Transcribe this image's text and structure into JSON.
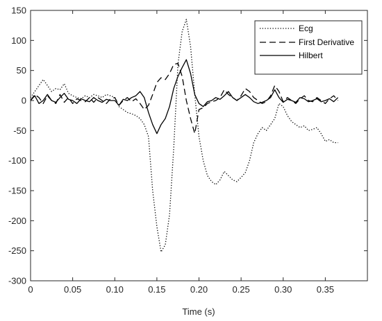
{
  "chart_data": {
    "type": "line",
    "title": "",
    "xlabel": "Time (s)",
    "ylabel": "",
    "xlim": [
      0,
      0.4
    ],
    "ylim": [
      -300,
      150
    ],
    "xticks": [
      0,
      0.05,
      0.1,
      0.15,
      0.2,
      0.25,
      0.3,
      0.35
    ],
    "xtick_labels": [
      "0",
      "0.05",
      "0.10",
      "0.15",
      "0.20",
      "0.25",
      "0.30",
      "0.35"
    ],
    "yticks": [
      150,
      100,
      50,
      0,
      -50,
      -100,
      -150,
      -200,
      -250,
      -300
    ],
    "ytick_labels": [
      "150",
      "100",
      "50",
      "0",
      "-50",
      "-100",
      "-150",
      "-200",
      "-250",
      "-300"
    ],
    "grid": false,
    "legend_position": "top-right",
    "series": [
      {
        "name": "Ecg",
        "style": "dotted",
        "color": "#000000",
        "x": [
          0.0,
          0.005,
          0.01,
          0.015,
          0.02,
          0.025,
          0.03,
          0.035,
          0.04,
          0.045,
          0.05,
          0.055,
          0.06,
          0.065,
          0.07,
          0.075,
          0.08,
          0.085,
          0.09,
          0.095,
          0.1,
          0.105,
          0.11,
          0.115,
          0.12,
          0.125,
          0.13,
          0.135,
          0.14,
          0.145,
          0.15,
          0.155,
          0.16,
          0.165,
          0.17,
          0.175,
          0.18,
          0.185,
          0.19,
          0.195,
          0.2,
          0.205,
          0.21,
          0.215,
          0.22,
          0.225,
          0.23,
          0.235,
          0.24,
          0.245,
          0.25,
          0.255,
          0.26,
          0.265,
          0.27,
          0.275,
          0.28,
          0.285,
          0.29,
          0.295,
          0.3,
          0.305,
          0.31,
          0.315,
          0.32,
          0.325,
          0.33,
          0.335,
          0.34,
          0.345,
          0.35,
          0.355,
          0.36,
          0.365
        ],
        "y": [
          5,
          15,
          25,
          35,
          25,
          15,
          20,
          18,
          28,
          12,
          8,
          5,
          3,
          8,
          5,
          10,
          8,
          5,
          10,
          8,
          5,
          -10,
          -15,
          -20,
          -22,
          -25,
          -30,
          -40,
          -60,
          -150,
          -210,
          -252,
          -240,
          -190,
          -80,
          60,
          115,
          135,
          90,
          10,
          -60,
          -100,
          -125,
          -135,
          -140,
          -132,
          -118,
          -125,
          -132,
          -135,
          -128,
          -120,
          -100,
          -70,
          -55,
          -45,
          -50,
          -40,
          -30,
          -5,
          -10,
          -25,
          -35,
          -40,
          -45,
          -42,
          -50,
          -48,
          -45,
          -55,
          -68,
          -65,
          -70,
          -70
        ]
      },
      {
        "name": "First Derivative",
        "style": "dashed",
        "color": "#000000",
        "x": [
          0.0,
          0.005,
          0.01,
          0.015,
          0.02,
          0.025,
          0.03,
          0.035,
          0.04,
          0.045,
          0.05,
          0.055,
          0.06,
          0.065,
          0.07,
          0.075,
          0.08,
          0.085,
          0.09,
          0.095,
          0.1,
          0.105,
          0.11,
          0.115,
          0.12,
          0.125,
          0.13,
          0.135,
          0.14,
          0.145,
          0.15,
          0.155,
          0.16,
          0.165,
          0.17,
          0.175,
          0.18,
          0.185,
          0.19,
          0.195,
          0.2,
          0.205,
          0.21,
          0.215,
          0.22,
          0.225,
          0.23,
          0.235,
          0.24,
          0.245,
          0.25,
          0.255,
          0.26,
          0.265,
          0.27,
          0.275,
          0.28,
          0.285,
          0.29,
          0.295,
          0.3,
          0.305,
          0.31,
          0.315,
          0.32,
          0.325,
          0.33,
          0.335,
          0.34,
          0.345,
          0.35,
          0.355,
          0.36,
          0.365
        ],
        "y": [
          0,
          10,
          5,
          -5,
          8,
          0,
          -5,
          10,
          -3,
          5,
          -5,
          3,
          0,
          -2,
          5,
          -3,
          5,
          0,
          -5,
          3,
          5,
          -8,
          0,
          5,
          -2,
          3,
          -5,
          -15,
          -8,
          10,
          30,
          38,
          35,
          45,
          60,
          62,
          40,
          0,
          -30,
          -55,
          -15,
          -12,
          -5,
          -2,
          0,
          5,
          18,
          10,
          5,
          0,
          8,
          20,
          15,
          5,
          0,
          -5,
          -2,
          8,
          25,
          15,
          -2,
          5,
          0,
          -5,
          3,
          8,
          0,
          -2,
          5,
          0,
          -5,
          3,
          8,
          0
        ]
      },
      {
        "name": "Hilbert",
        "style": "solid",
        "color": "#000000",
        "x": [
          0.0,
          0.005,
          0.01,
          0.015,
          0.02,
          0.025,
          0.03,
          0.035,
          0.04,
          0.045,
          0.05,
          0.055,
          0.06,
          0.065,
          0.07,
          0.075,
          0.08,
          0.085,
          0.09,
          0.095,
          0.1,
          0.105,
          0.11,
          0.115,
          0.12,
          0.125,
          0.13,
          0.135,
          0.14,
          0.145,
          0.15,
          0.155,
          0.16,
          0.165,
          0.17,
          0.175,
          0.18,
          0.185,
          0.19,
          0.195,
          0.2,
          0.205,
          0.21,
          0.215,
          0.22,
          0.225,
          0.23,
          0.235,
          0.24,
          0.245,
          0.25,
          0.255,
          0.26,
          0.265,
          0.27,
          0.275,
          0.28,
          0.285,
          0.29,
          0.295,
          0.3,
          0.305,
          0.31,
          0.315,
          0.32,
          0.325,
          0.33,
          0.335,
          0.34,
          0.345,
          0.35,
          0.355,
          0.36,
          0.365
        ],
        "y": [
          0,
          8,
          -5,
          0,
          10,
          0,
          -3,
          5,
          12,
          2,
          0,
          -5,
          3,
          0,
          -2,
          5,
          0,
          -3,
          2,
          0,
          0,
          -8,
          2,
          0,
          5,
          8,
          15,
          5,
          -20,
          -40,
          -55,
          -40,
          -30,
          -10,
          20,
          40,
          55,
          68,
          45,
          10,
          -5,
          -10,
          -2,
          0,
          5,
          2,
          8,
          15,
          5,
          0,
          5,
          10,
          5,
          -2,
          -5,
          -3,
          0,
          5,
          18,
          5,
          -3,
          2,
          0,
          -3,
          5,
          3,
          -2,
          0,
          3,
          -2,
          0,
          3,
          -2,
          5
        ]
      }
    ]
  },
  "legend": {
    "items": [
      "Ecg",
      "First Derivative",
      "Hilbert"
    ]
  }
}
